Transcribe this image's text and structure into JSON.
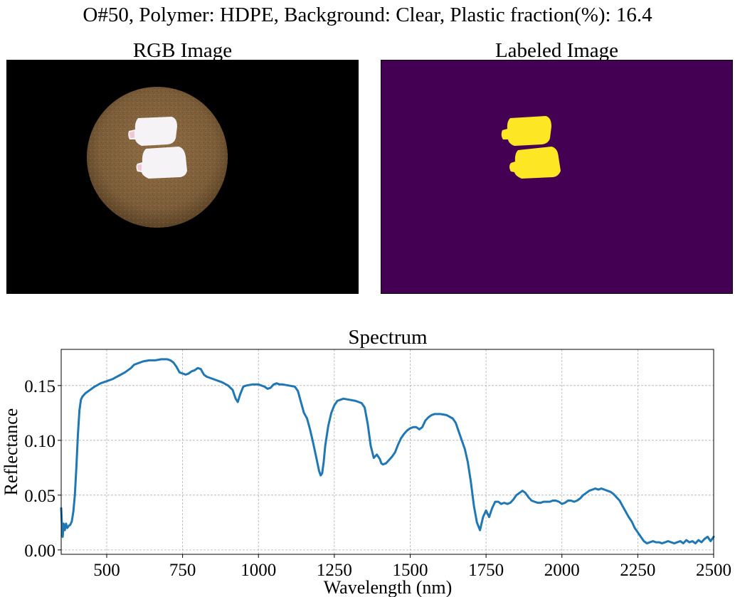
{
  "suptitle": "O#50,  Polymer: HDPE,  Background: Clear,  Plastic fraction(%): 16.4",
  "panels": {
    "rgb_title": "RGB Image",
    "label_title": "Labeled Image"
  },
  "colors": {
    "rgb_background": "#000000",
    "dish": "#8a6a43",
    "dish_edge": "#6a4f2e",
    "plastic": "#f4f2f5",
    "label_background": "#440154",
    "label_plastic": "#fde725",
    "line": "#1f77b4",
    "grid": "#b0b0b0"
  },
  "chart_data": {
    "type": "line",
    "title": "Spectrum",
    "xlabel": "Wavelength (nm)",
    "ylabel": "Reflectance",
    "xlim": [
      350,
      2500
    ],
    "ylim": [
      -0.004,
      0.183
    ],
    "xticks": [
      500,
      750,
      1000,
      1250,
      1500,
      1750,
      2000,
      2250,
      2500
    ],
    "xtick_labels": [
      "500",
      "750",
      "1000",
      "1250",
      "1500",
      "1750",
      "2000",
      "2250",
      "2500"
    ],
    "yticks": [
      0.0,
      0.05,
      0.1,
      0.15
    ],
    "ytick_labels": [
      "0.00",
      "0.05",
      "0.10",
      "0.15"
    ],
    "grid": true,
    "grid_style": "dashed",
    "legend": false,
    "series": [
      {
        "x": [
          350,
          352,
          355,
          358,
          362,
          366,
          370,
          375,
          380,
          385,
          390,
          395,
          400,
          405,
          410,
          415,
          420,
          430,
          440,
          460,
          480,
          500,
          520,
          540,
          560,
          580,
          590,
          600,
          620,
          640,
          660,
          680,
          700,
          710,
          720,
          730,
          740,
          750,
          760,
          770,
          780,
          790,
          800,
          810,
          820,
          830,
          840,
          860,
          880,
          900,
          915,
          925,
          932,
          940,
          950,
          960,
          980,
          1000,
          1020,
          1030,
          1040,
          1050,
          1060,
          1070,
          1080,
          1100,
          1120,
          1130,
          1140,
          1150,
          1160,
          1170,
          1180,
          1190,
          1200,
          1205,
          1210,
          1215,
          1220,
          1230,
          1240,
          1250,
          1260,
          1270,
          1280,
          1300,
          1320,
          1340,
          1350,
          1360,
          1370,
          1380,
          1390,
          1400,
          1405,
          1410,
          1420,
          1430,
          1440,
          1450,
          1460,
          1470,
          1480,
          1490,
          1500,
          1510,
          1520,
          1530,
          1540,
          1550,
          1560,
          1570,
          1580,
          1590,
          1600,
          1620,
          1640,
          1650,
          1660,
          1670,
          1680,
          1690,
          1700,
          1710,
          1720,
          1730,
          1740,
          1750,
          1760,
          1770,
          1780,
          1790,
          1800,
          1810,
          1820,
          1830,
          1840,
          1850,
          1860,
          1870,
          1880,
          1890,
          1900,
          1910,
          1920,
          1930,
          1940,
          1950,
          1960,
          1970,
          1980,
          1990,
          2000,
          2010,
          2020,
          2030,
          2040,
          2050,
          2060,
          2070,
          2080,
          2090,
          2100,
          2110,
          2120,
          2130,
          2140,
          2150,
          2160,
          2170,
          2180,
          2190,
          2200,
          2210,
          2220,
          2230,
          2240,
          2250,
          2260,
          2270,
          2280,
          2290,
          2300,
          2310,
          2320,
          2330,
          2340,
          2350,
          2360,
          2370,
          2380,
          2390,
          2400,
          2410,
          2420,
          2430,
          2440,
          2450,
          2460,
          2470,
          2480,
          2490,
          2500
        ],
        "y": [
          0.038,
          0.025,
          0.012,
          0.024,
          0.018,
          0.024,
          0.02,
          0.022,
          0.023,
          0.026,
          0.035,
          0.05,
          0.075,
          0.105,
          0.127,
          0.137,
          0.14,
          0.143,
          0.145,
          0.149,
          0.152,
          0.154,
          0.156,
          0.159,
          0.162,
          0.166,
          0.169,
          0.17,
          0.172,
          0.173,
          0.173,
          0.174,
          0.174,
          0.173,
          0.171,
          0.167,
          0.162,
          0.161,
          0.16,
          0.161,
          0.163,
          0.164,
          0.166,
          0.165,
          0.16,
          0.158,
          0.157,
          0.155,
          0.153,
          0.15,
          0.146,
          0.138,
          0.135,
          0.142,
          0.149,
          0.15,
          0.151,
          0.151,
          0.149,
          0.147,
          0.148,
          0.151,
          0.152,
          0.151,
          0.151,
          0.15,
          0.149,
          0.145,
          0.135,
          0.125,
          0.12,
          0.11,
          0.098,
          0.085,
          0.072,
          0.068,
          0.07,
          0.08,
          0.095,
          0.113,
          0.125,
          0.132,
          0.136,
          0.137,
          0.138,
          0.137,
          0.136,
          0.134,
          0.13,
          0.115,
          0.095,
          0.084,
          0.087,
          0.083,
          0.079,
          0.078,
          0.079,
          0.082,
          0.085,
          0.089,
          0.096,
          0.102,
          0.106,
          0.109,
          0.111,
          0.112,
          0.112,
          0.11,
          0.112,
          0.118,
          0.121,
          0.123,
          0.124,
          0.124,
          0.124,
          0.123,
          0.12,
          0.116,
          0.108,
          0.1,
          0.092,
          0.08,
          0.062,
          0.04,
          0.025,
          0.018,
          0.03,
          0.036,
          0.03,
          0.038,
          0.044,
          0.044,
          0.042,
          0.043,
          0.042,
          0.043,
          0.046,
          0.05,
          0.052,
          0.054,
          0.052,
          0.048,
          0.045,
          0.044,
          0.043,
          0.043,
          0.044,
          0.044,
          0.044,
          0.045,
          0.045,
          0.044,
          0.042,
          0.043,
          0.045,
          0.045,
          0.044,
          0.045,
          0.047,
          0.05,
          0.052,
          0.054,
          0.055,
          0.056,
          0.055,
          0.056,
          0.055,
          0.054,
          0.053,
          0.051,
          0.048,
          0.045,
          0.04,
          0.035,
          0.03,
          0.026,
          0.02,
          0.016,
          0.012,
          0.008,
          0.006,
          0.007,
          0.008,
          0.007,
          0.007,
          0.006,
          0.007,
          0.008,
          0.007,
          0.006,
          0.007,
          0.008,
          0.006,
          0.009,
          0.007,
          0.008,
          0.006,
          0.009,
          0.007,
          0.01,
          0.012,
          0.008,
          0.012
        ]
      }
    ]
  }
}
